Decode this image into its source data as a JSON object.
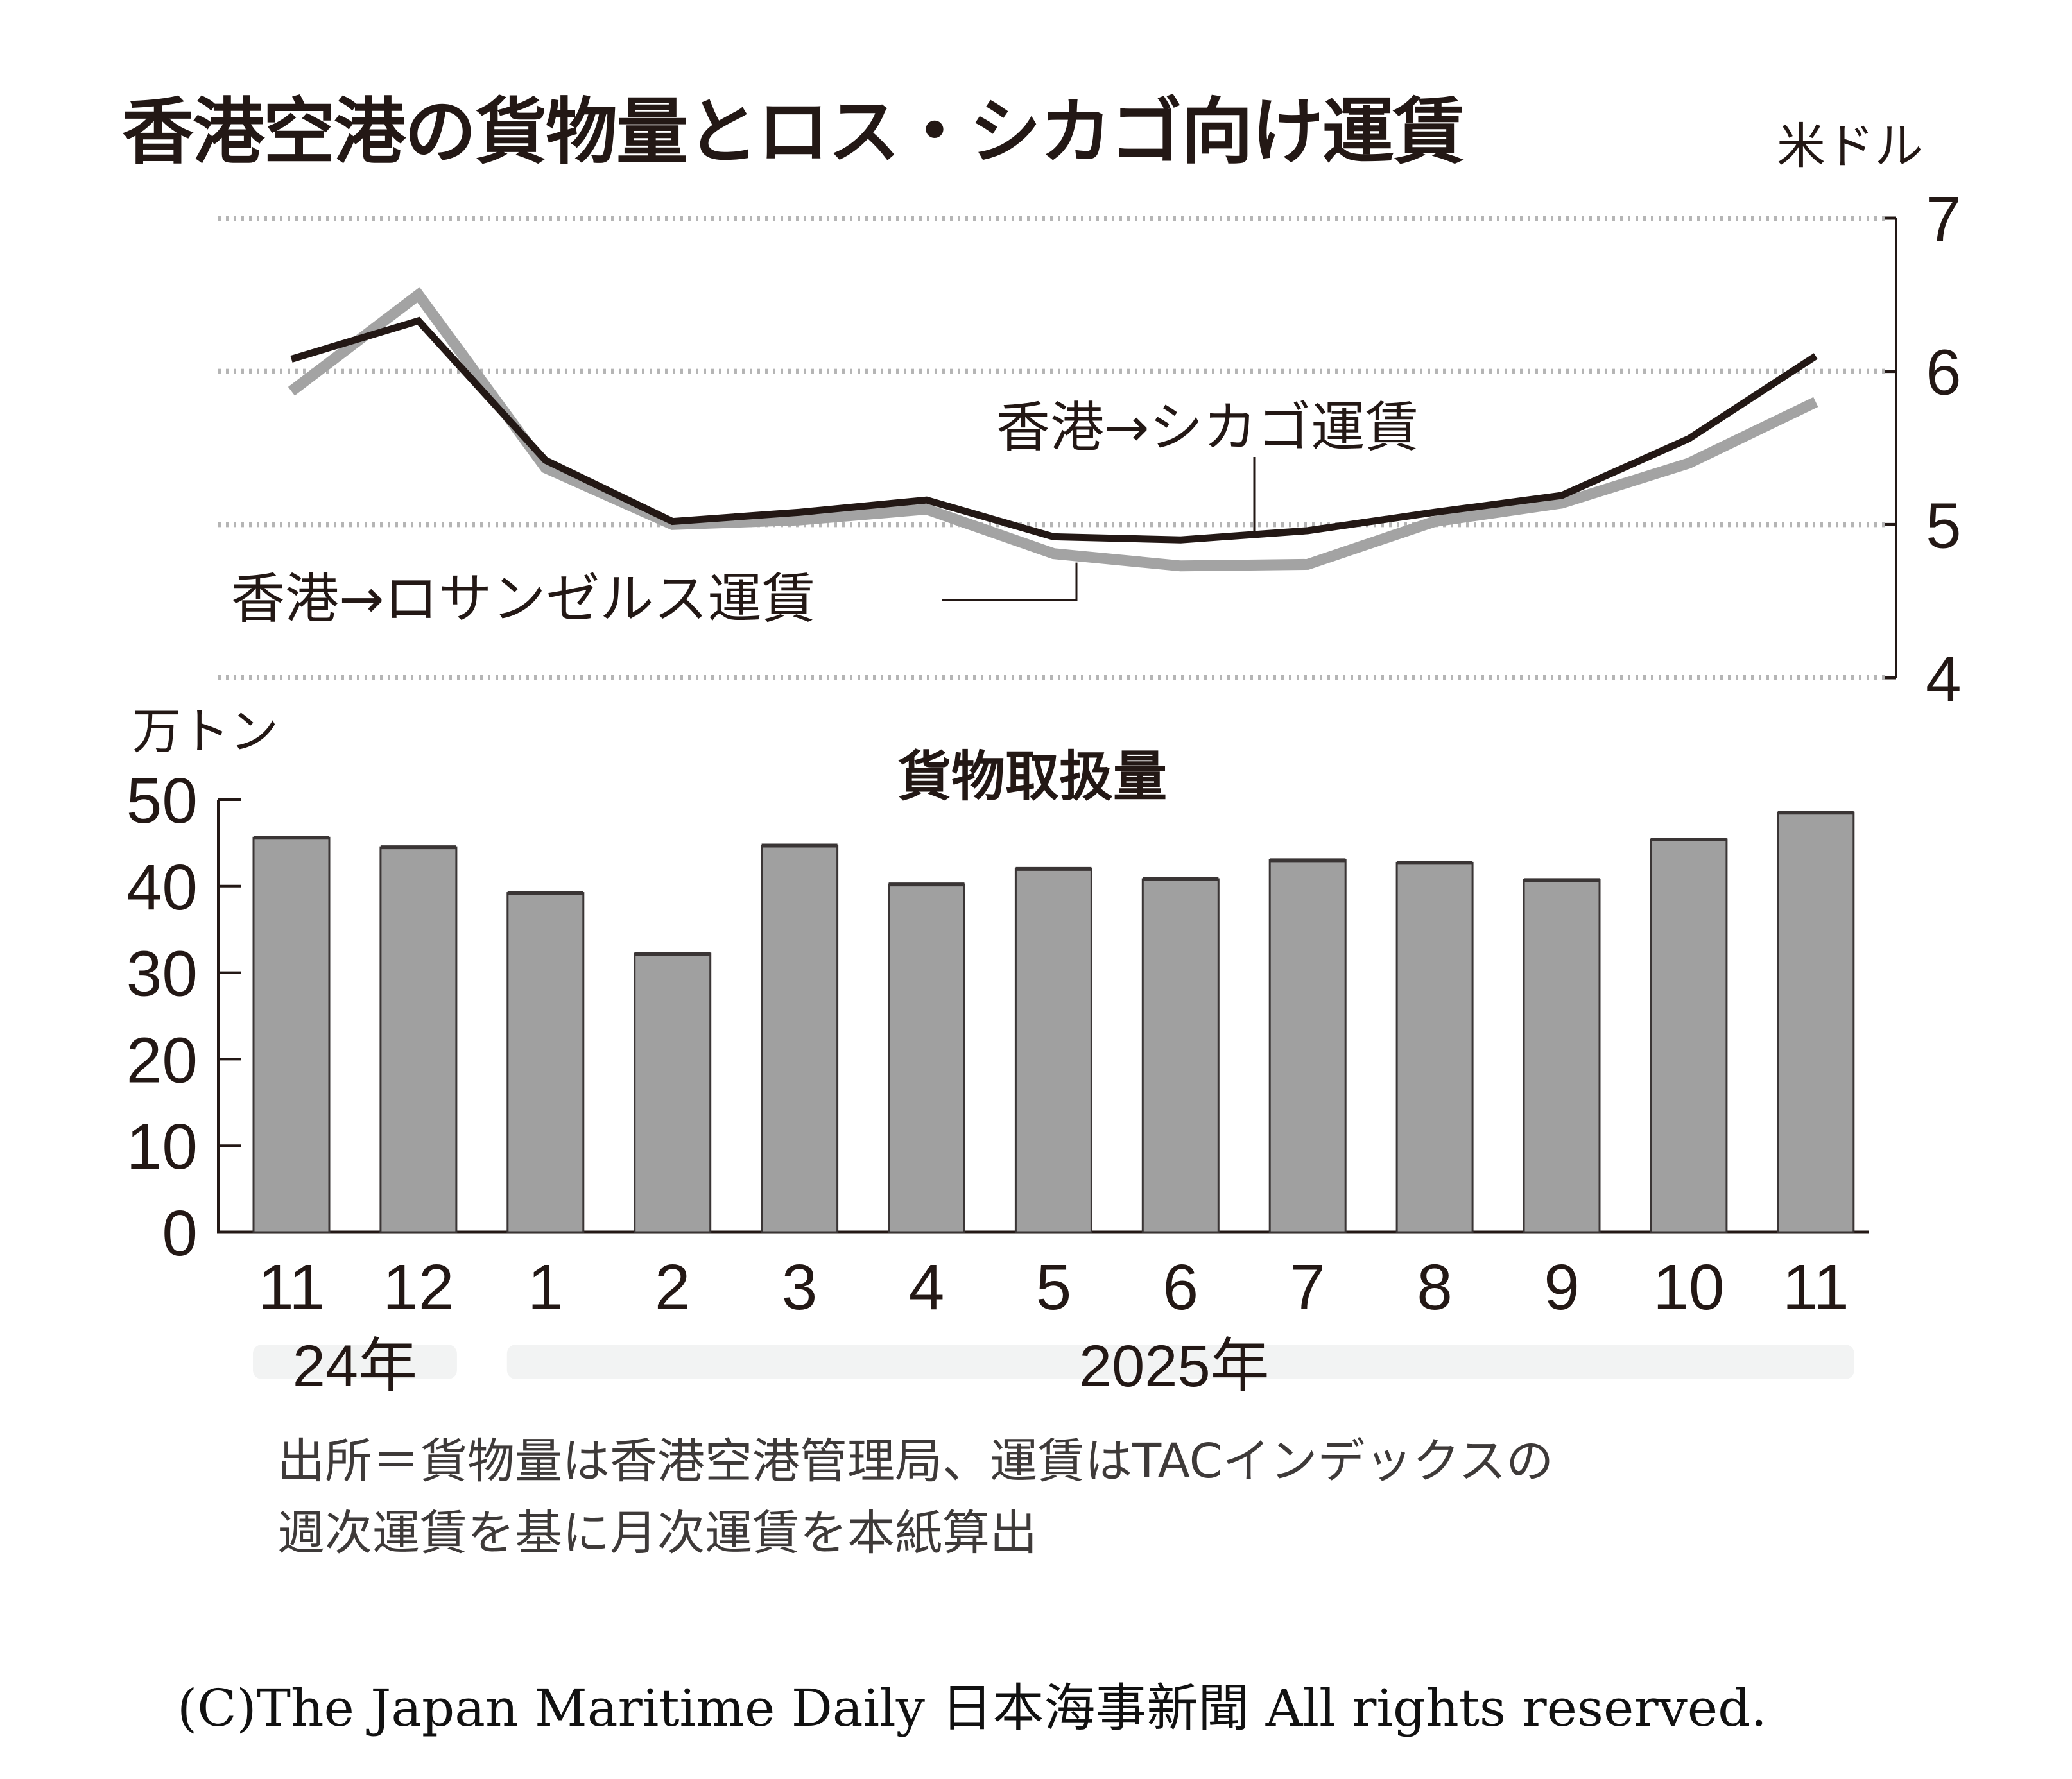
{
  "title": "香港空港の貨物量とロス・シカゴ向け運賃",
  "source_note": {
    "line1": "出所＝貨物量は香港空港管理局、運賃はTACインデックスの",
    "line2": "週次運賃を基に月次運賃を本紙算出"
  },
  "copyright": "(C)The Japan Maritime Daily 日本海事新聞 All rights reserved.",
  "chart_data": [
    {
      "type": "line",
      "title": "香港空港の貨物量とロス・シカゴ向け運賃",
      "ylabel": "米ドル",
      "ylim": [
        4,
        7
      ],
      "yticks": [
        "4",
        "5",
        "6",
        "7"
      ],
      "y_axis_side": "right",
      "grid": true,
      "x": [
        "11",
        "12",
        "1",
        "2",
        "3",
        "4",
        "5",
        "6",
        "7",
        "8",
        "9",
        "10",
        "11"
      ],
      "series": [
        {
          "name": "香港→シカゴ運賃",
          "color": "#231815",
          "values": [
            6.08,
            6.33,
            5.42,
            5.02,
            5.08,
            5.16,
            4.92,
            4.9,
            4.96,
            5.08,
            5.19,
            5.56,
            6.1
          ]
        },
        {
          "name": "香港→ロサンゼルス運賃",
          "color": "#a3a3a3",
          "values": [
            5.87,
            6.5,
            5.37,
            5.0,
            5.03,
            5.1,
            4.81,
            4.73,
            4.74,
            5.02,
            5.14,
            5.4,
            5.8
          ]
        }
      ]
    },
    {
      "type": "bar",
      "title": "貨物取扱量",
      "ylabel": "万トン",
      "xlabel": "",
      "ylim": [
        0,
        50
      ],
      "yticks": [
        "0",
        "10",
        "20",
        "30",
        "40",
        "50"
      ],
      "y_axis_side": "left",
      "grid": false,
      "categories": [
        "11",
        "12",
        "1",
        "2",
        "3",
        "4",
        "5",
        "6",
        "7",
        "8",
        "9",
        "10",
        "11"
      ],
      "year_groups": [
        {
          "label": "24年",
          "months": 2
        },
        {
          "label": "2025年",
          "months": 11
        }
      ],
      "bar_color": "#a0a0a0",
      "values": [
        45.6,
        44.5,
        39.2,
        32.2,
        44.7,
        40.2,
        42.0,
        40.8,
        43.0,
        42.7,
        40.7,
        45.4,
        48.5
      ]
    }
  ]
}
